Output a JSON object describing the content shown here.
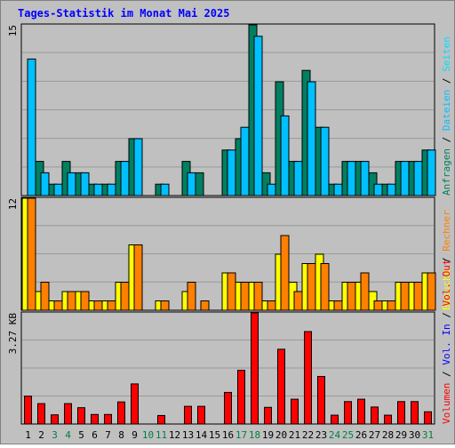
{
  "colors": {
    "frame_bg": "#c0c0c0",
    "plot_bg": "#c0c0c0",
    "grid": "#999999",
    "title": "#0000ff",
    "weekday_label": "#000000",
    "weekend_label": "#008040",
    "hits": "#008060",
    "files": "#00c0ff",
    "pages": "#00e0ff",
    "visits": "#ffff00",
    "sites": "#ff8000",
    "kbytes": "#ff0000",
    "kb_out": "#ff0000",
    "kb_in": "#0000ff",
    "separator": "#000000"
  },
  "chart_data": {
    "type": "bar",
    "title": "Tages-Statistik im Monat Mai 2025",
    "categories": [
      "1",
      "2",
      "3",
      "4",
      "5",
      "6",
      "7",
      "8",
      "9",
      "10",
      "11",
      "12",
      "13",
      "14",
      "15",
      "16",
      "17",
      "18",
      "19",
      "20",
      "21",
      "22",
      "23",
      "24",
      "25",
      "26",
      "27",
      "28",
      "29",
      "30",
      "31"
    ],
    "weekend_days": [
      "3",
      "4",
      "10",
      "11",
      "17",
      "18",
      "24",
      "25",
      "31"
    ],
    "panels": [
      {
        "name": "top",
        "ymax_label": "15",
        "ymax": 15,
        "legend": [
          "Anfragen",
          "/",
          "Dateien",
          "/",
          "Seiten"
        ],
        "series": [
          {
            "name": "Anfragen",
            "values": [
              0,
              3,
              1,
              3,
              2,
              1,
              1,
              3,
              5,
              0,
              1,
              0,
              3,
              2,
              0,
              4,
              5,
              15,
              2,
              10,
              3,
              11,
              6,
              1,
              3,
              3,
              2,
              1,
              3,
              3,
              4
            ]
          },
          {
            "name": "Dateien",
            "values": [
              12,
              2,
              1,
              2,
              2,
              1,
              1,
              3,
              5,
              0,
              1,
              0,
              2,
              0,
              0,
              4,
              6,
              14,
              1,
              7,
              3,
              10,
              6,
              1,
              3,
              3,
              1,
              1,
              3,
              3,
              4
            ]
          }
        ]
      },
      {
        "name": "middle",
        "ymax_label": "12",
        "ymax": 12,
        "legend": [
          "Besuche",
          "/",
          "Rechner"
        ],
        "series": [
          {
            "name": "Besuche",
            "values": [
              12,
              2,
              1,
              2,
              2,
              1,
              1,
              3,
              7,
              0,
              1,
              0,
              2,
              0,
              0,
              4,
              3,
              3,
              1,
              6,
              3,
              5,
              6,
              1,
              3,
              3,
              2,
              1,
              3,
              3,
              4
            ]
          },
          {
            "name": "Rechner",
            "values": [
              12,
              3,
              1,
              2,
              2,
              1,
              1,
              3,
              7,
              0,
              1,
              0,
              3,
              1,
              0,
              4,
              3,
              3,
              1,
              8,
              2,
              5,
              5,
              1,
              3,
              4,
              1,
              1,
              3,
              3,
              4
            ]
          }
        ]
      },
      {
        "name": "bottom",
        "ymax_label": "3.27 KB",
        "ymax": 3.27,
        "legend": [
          "Volumen",
          "/",
          "Vol. In",
          "/",
          "Vol. Out"
        ],
        "series": [
          {
            "name": "Volumen",
            "values": [
              0.82,
              0.6,
              0.27,
              0.6,
              0.48,
              0.28,
              0.28,
              0.65,
              1.18,
              0,
              0.25,
              0,
              0.52,
              0.52,
              0,
              0.93,
              1.58,
              3.27,
              0.49,
              2.2,
              0.73,
              2.72,
              1.4,
              0.26,
              0.66,
              0.73,
              0.5,
              0.26,
              0.66,
              0.66,
              0.36
            ]
          }
        ]
      }
    ]
  }
}
